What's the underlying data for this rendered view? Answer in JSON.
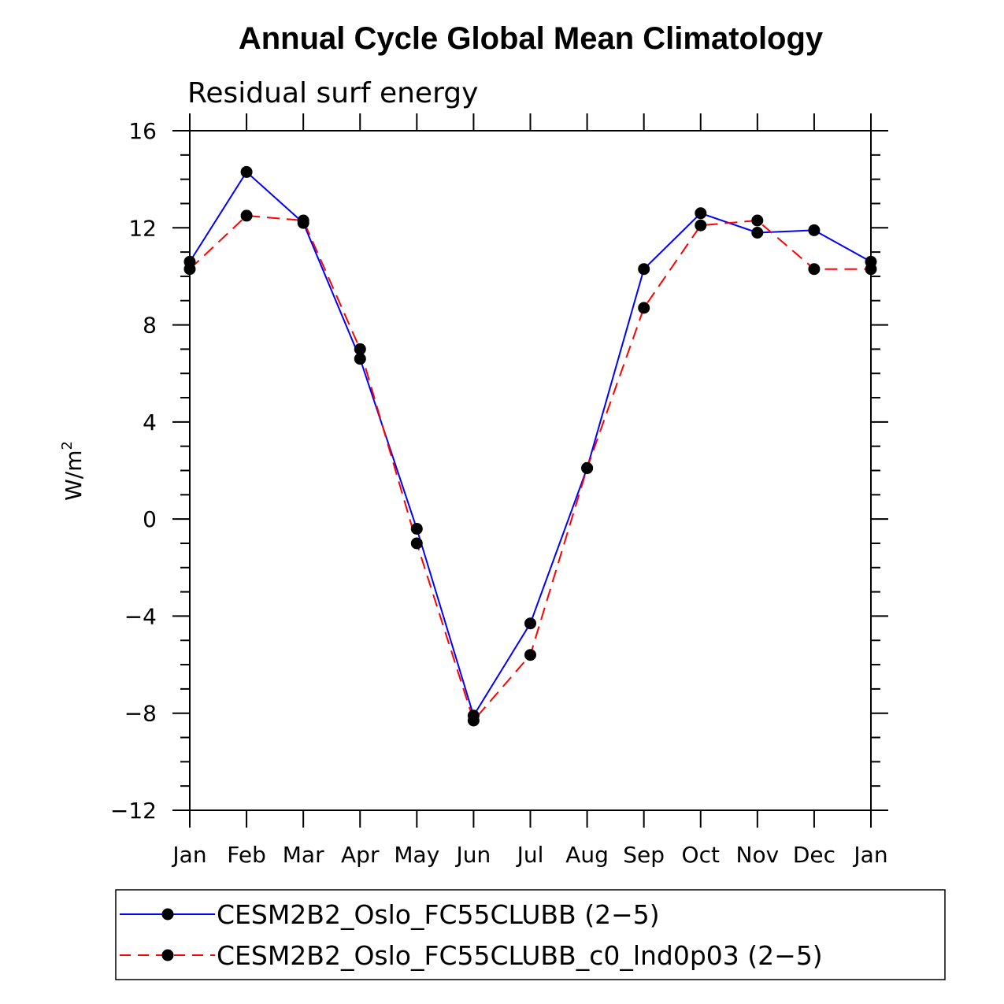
{
  "chart_data": {
    "type": "line",
    "title": "Annual Cycle Global Mean Climatology",
    "subtitle": "Residual surf energy",
    "ylabel": "W/m",
    "ylabel_superscript": "2",
    "xlabel": "",
    "categories": [
      "Jan",
      "Feb",
      "Mar",
      "Apr",
      "May",
      "Jun",
      "Jul",
      "Aug",
      "Sep",
      "Oct",
      "Nov",
      "Dec",
      "Jan"
    ],
    "ylim": [
      -12,
      16
    ],
    "yticks": [
      -12,
      -8,
      -4,
      0,
      4,
      8,
      12,
      16
    ],
    "ytick_labels": [
      "−12",
      "−8",
      "−4",
      "0",
      "4",
      "8",
      "12",
      "16"
    ],
    "series": [
      {
        "name": "CESM2B2_Oslo_FC55CLUBB (2−5)",
        "color": "#0000ff",
        "dash": "solid",
        "values": [
          10.6,
          14.3,
          12.2,
          6.6,
          -0.4,
          -8.1,
          -4.3,
          2.1,
          10.3,
          12.6,
          11.8,
          11.9,
          10.6
        ]
      },
      {
        "name": "CESM2B2_Oslo_FC55CLUBB_c0_lnd0p03 (2−5)",
        "color": "#ff0000",
        "dash": "dashed",
        "values": [
          10.3,
          12.5,
          12.3,
          7.0,
          -1.0,
          -8.3,
          -5.6,
          2.1,
          8.7,
          12.1,
          12.3,
          10.3,
          10.3
        ]
      }
    ],
    "legend_position": "bottom"
  }
}
